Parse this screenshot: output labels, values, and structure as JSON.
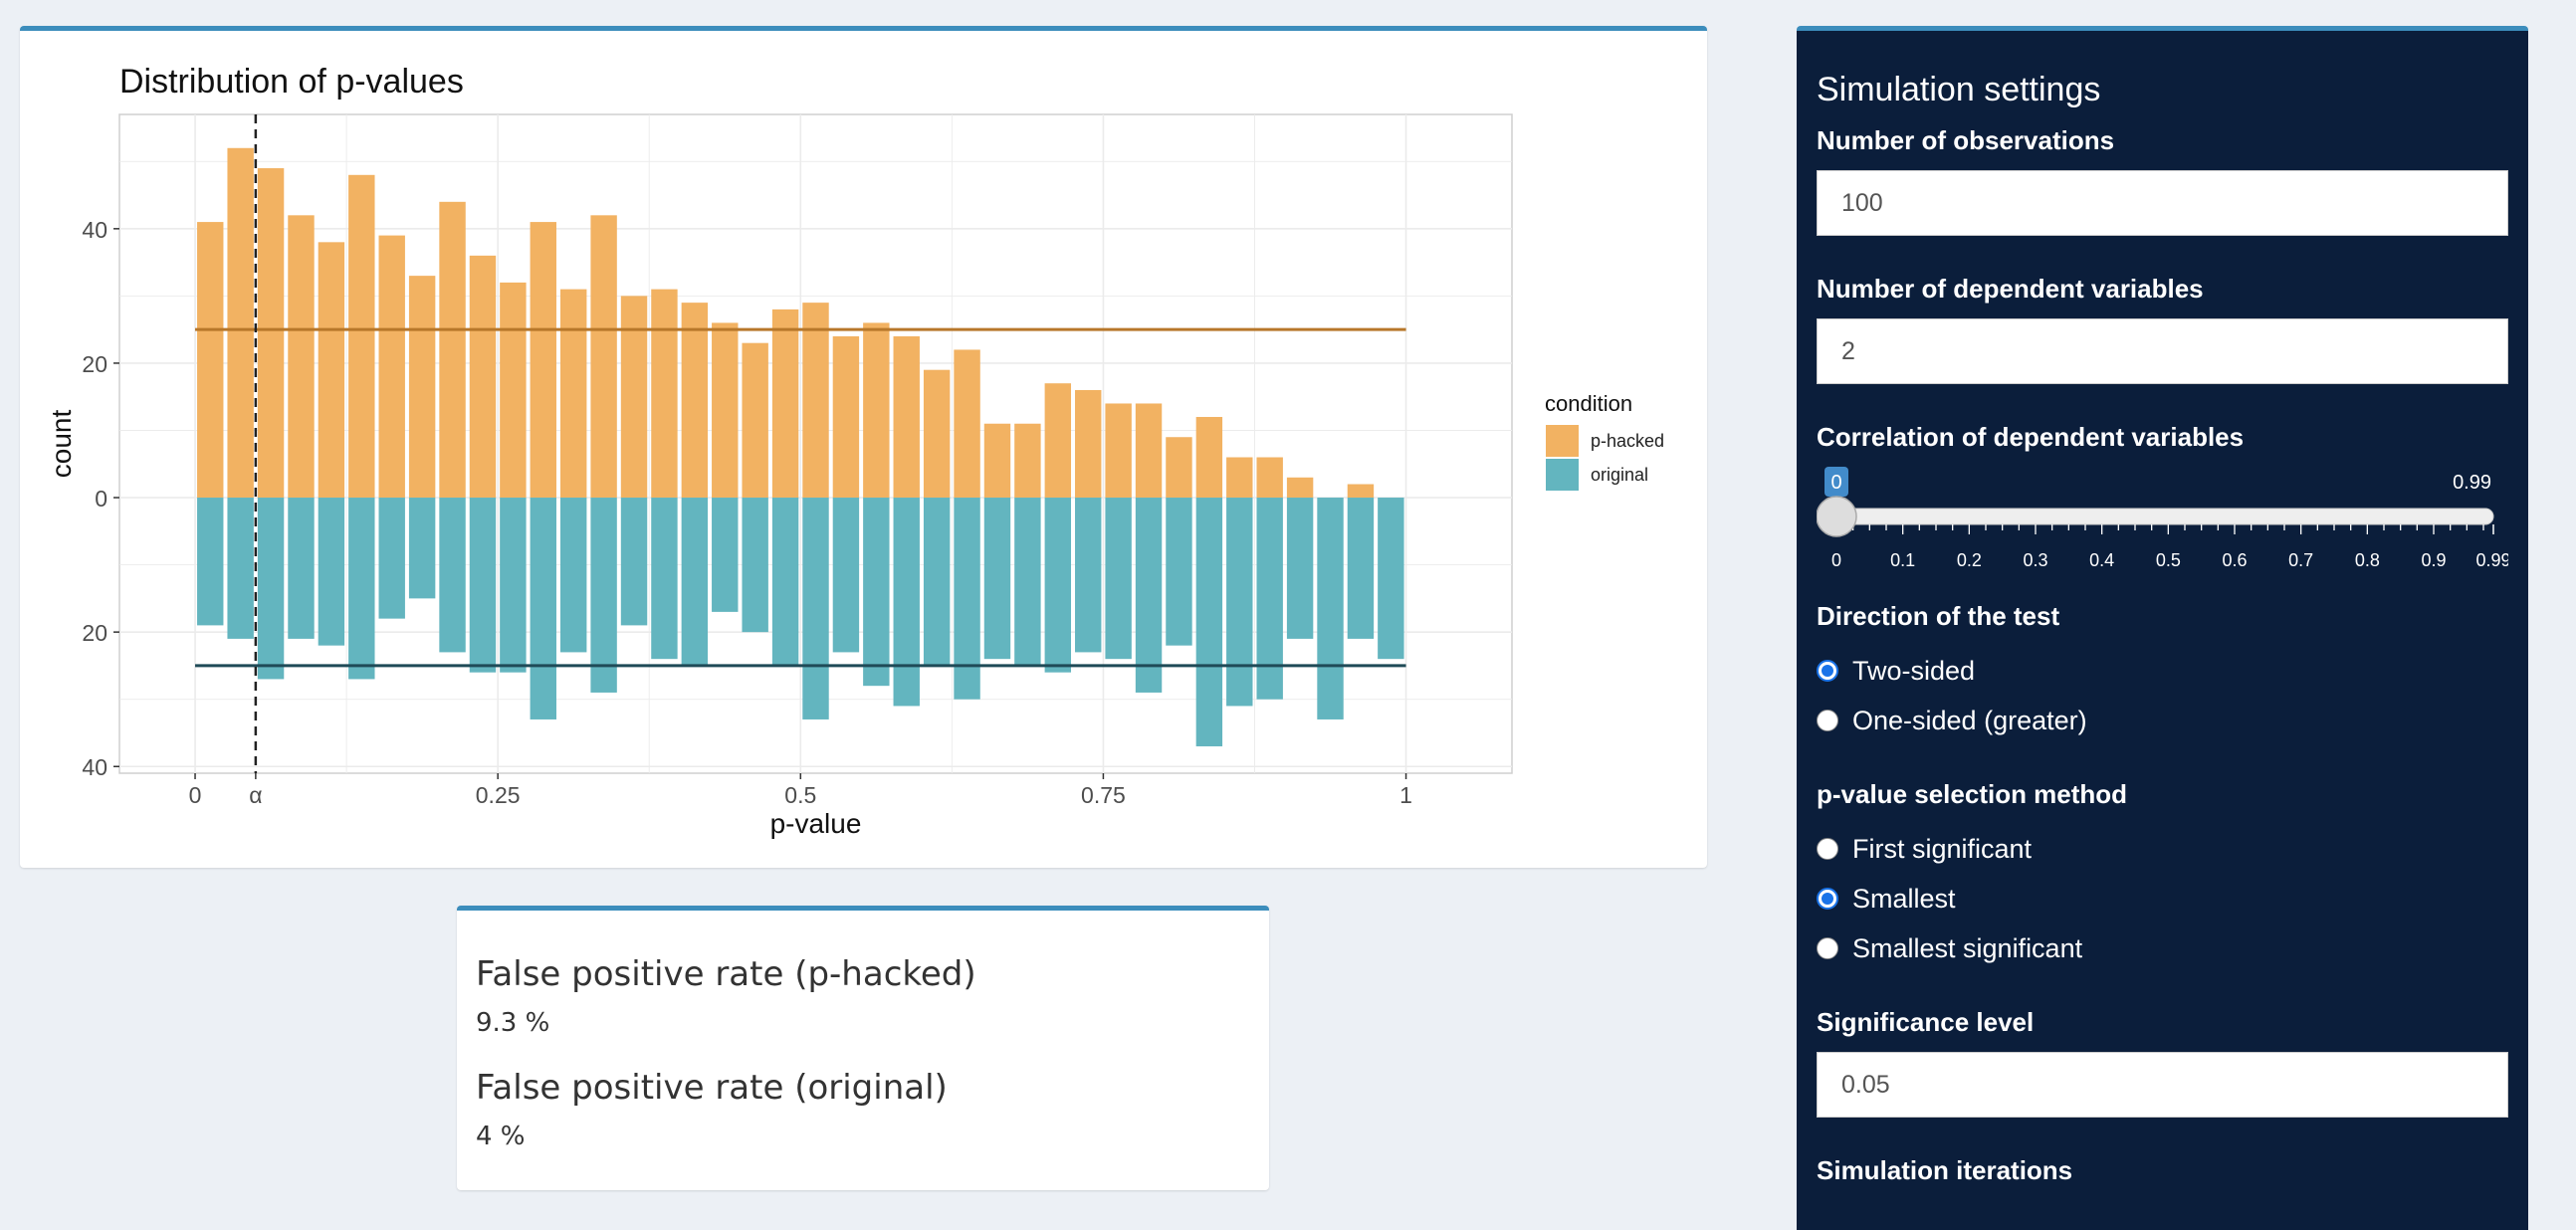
{
  "plot": {
    "title": "Distribution of p-values",
    "legend_title": "condition",
    "colors": {
      "p_hacked": "#f2b262",
      "original": "#63b5bf",
      "alpha_line": "#222222",
      "hline_top": "#b7772a",
      "hline_bottom": "#1f4a57"
    }
  },
  "chart_data": {
    "type": "bar",
    "title": "Distribution of p-values",
    "xlabel": "p-value",
    "ylabel": "count",
    "x_tick_labels": [
      "0",
      "α",
      "0.25",
      "0.5",
      "0.75",
      "1"
    ],
    "x_tick_values": [
      0,
      0.05,
      0.25,
      0.5,
      0.75,
      1
    ],
    "y_tick_labels": [
      "40",
      "20",
      "0",
      "20",
      "40"
    ],
    "y_tick_values": [
      40,
      20,
      0,
      -20,
      -40
    ],
    "xlim": [
      -0.0625,
      1.0875
    ],
    "ylim": [
      -41,
      57
    ],
    "bin_width": 0.025,
    "bin_starts": [
      0,
      0.025,
      0.05,
      0.075,
      0.1,
      0.125,
      0.15,
      0.175,
      0.2,
      0.225,
      0.25,
      0.275,
      0.3,
      0.325,
      0.35,
      0.375,
      0.4,
      0.425,
      0.45,
      0.475,
      0.5,
      0.525,
      0.55,
      0.575,
      0.6,
      0.625,
      0.65,
      0.675,
      0.7,
      0.725,
      0.75,
      0.775,
      0.8,
      0.825,
      0.85,
      0.875,
      0.9,
      0.925,
      0.95,
      0.975
    ],
    "series": [
      {
        "name": "p-hacked",
        "values": [
          41,
          52,
          49,
          42,
          38,
          48,
          39,
          33,
          44,
          36,
          32,
          41,
          31,
          42,
          30,
          31,
          29,
          26,
          23,
          28,
          29,
          24,
          26,
          24,
          19,
          22,
          11,
          11,
          17,
          16,
          14,
          14,
          9,
          12,
          6,
          6,
          3,
          0,
          2,
          0
        ]
      },
      {
        "name": "original",
        "values": [
          -19,
          -21,
          -27,
          -21,
          -22,
          -27,
          -18,
          -15,
          -23,
          -26,
          -26,
          -33,
          -23,
          -29,
          -19,
          -24,
          -25,
          -17,
          -20,
          -25,
          -33,
          -23,
          -28,
          -31,
          -25,
          -30,
          -24,
          -25,
          -26,
          -23,
          -24,
          -29,
          -22,
          -37,
          -31,
          -30,
          -21,
          -33,
          -21,
          -24
        ]
      }
    ],
    "alpha": 0.05,
    "hlines": [
      25,
      -25
    ],
    "legend": {
      "position": "right",
      "entries": [
        "p-hacked",
        "original"
      ]
    },
    "grid": true
  },
  "rates": {
    "hacked_label": "False positive rate (p-hacked)",
    "hacked_value": "9.3 %",
    "original_label": "False positive rate (original)",
    "original_value": "4 %"
  },
  "settings": {
    "title": "Simulation settings",
    "n_obs_label": "Number of observations",
    "n_obs_value": "100",
    "n_dv_label": "Number of dependent variables",
    "n_dv_value": "2",
    "corr_label": "Correlation of dependent variables",
    "corr_min": "0",
    "corr_max": "0.99",
    "corr_value": 0,
    "corr_current_label": "0",
    "corr_ticks": [
      "0",
      "0.1",
      "0.2",
      "0.3",
      "0.4",
      "0.5",
      "0.6",
      "0.7",
      "0.8",
      "0.9",
      "0.99"
    ],
    "direction_label": "Direction of the test",
    "direction_options": [
      "Two-sided",
      "One-sided (greater)"
    ],
    "direction_selected": 0,
    "method_label": "p-value selection method",
    "method_options": [
      "First significant",
      "Smallest",
      "Smallest significant"
    ],
    "method_selected": 1,
    "alpha_label": "Significance level",
    "alpha_value": "0.05",
    "iterations_label": "Simulation iterations"
  }
}
